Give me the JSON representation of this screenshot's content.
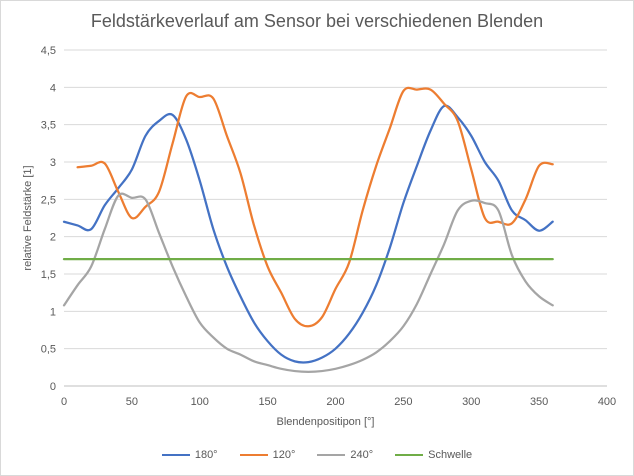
{
  "chart_data": {
    "type": "line",
    "title": "Feldstärkeverlauf am Sensor bei verschiedenen Blenden",
    "xlabel": "Blendenpositipon [°]",
    "ylabel": "relative Feldstärke [1]",
    "xlim": [
      0,
      400
    ],
    "ylim": [
      0,
      4.5
    ],
    "xticks": [
      "0",
      "50",
      "100",
      "150",
      "200",
      "250",
      "300",
      "350",
      "400"
    ],
    "yticks": [
      "0",
      "0,5",
      "1",
      "1,5",
      "2",
      "2,5",
      "3",
      "3,5",
      "4",
      "4,5"
    ],
    "grid": "horizontal",
    "legend": "bottom",
    "series": [
      {
        "name": "180°",
        "color": "#4472C4",
        "x": [
          0,
          10,
          20,
          30,
          40,
          50,
          60,
          70,
          80,
          90,
          100,
          110,
          120,
          130,
          140,
          150,
          160,
          170,
          180,
          190,
          200,
          210,
          220,
          230,
          240,
          250,
          260,
          270,
          280,
          290,
          300,
          310,
          320,
          330,
          340,
          350,
          360
        ],
        "y": [
          2.2,
          2.15,
          2.1,
          2.42,
          2.65,
          2.9,
          3.35,
          3.55,
          3.63,
          3.3,
          2.75,
          2.1,
          1.6,
          1.2,
          0.85,
          0.6,
          0.42,
          0.33,
          0.32,
          0.38,
          0.5,
          0.7,
          0.98,
          1.35,
          1.85,
          2.45,
          2.95,
          3.42,
          3.75,
          3.6,
          3.35,
          3.0,
          2.75,
          2.35,
          2.22,
          2.08,
          2.2
        ]
      },
      {
        "name": "120°",
        "color": "#ED7D31",
        "x": [
          10,
          20,
          30,
          40,
          50,
          60,
          70,
          80,
          90,
          100,
          110,
          120,
          130,
          140,
          150,
          160,
          170,
          180,
          190,
          200,
          210,
          220,
          230,
          240,
          250,
          260,
          270,
          280,
          290,
          300,
          310,
          320,
          330,
          340,
          350,
          360
        ],
        "y": [
          2.93,
          2.95,
          2.98,
          2.6,
          2.25,
          2.4,
          2.6,
          3.25,
          3.88,
          3.87,
          3.85,
          3.35,
          2.85,
          2.15,
          1.6,
          1.25,
          0.9,
          0.8,
          0.92,
          1.3,
          1.65,
          2.35,
          2.95,
          3.45,
          3.95,
          3.97,
          3.97,
          3.78,
          3.55,
          2.9,
          2.25,
          2.2,
          2.18,
          2.5,
          2.95,
          2.97
        ]
      },
      {
        "name": "240°",
        "color": "#A5A5A5",
        "x": [
          0,
          10,
          20,
          30,
          40,
          50,
          60,
          70,
          80,
          90,
          100,
          110,
          120,
          130,
          140,
          150,
          160,
          170,
          180,
          190,
          200,
          210,
          220,
          230,
          240,
          250,
          260,
          270,
          280,
          290,
          300,
          310,
          320,
          330,
          340,
          350,
          360
        ],
        "y": [
          1.08,
          1.35,
          1.6,
          2.1,
          2.55,
          2.52,
          2.5,
          2.05,
          1.6,
          1.2,
          0.85,
          0.65,
          0.5,
          0.42,
          0.33,
          0.28,
          0.23,
          0.2,
          0.19,
          0.2,
          0.23,
          0.28,
          0.35,
          0.45,
          0.6,
          0.8,
          1.1,
          1.5,
          1.9,
          2.35,
          2.48,
          2.45,
          2.35,
          1.75,
          1.4,
          1.2,
          1.08
        ]
      },
      {
        "name": "Schwelle",
        "color": "#70AD47",
        "x": [
          0,
          360
        ],
        "y": [
          1.7,
          1.7
        ]
      }
    ]
  }
}
